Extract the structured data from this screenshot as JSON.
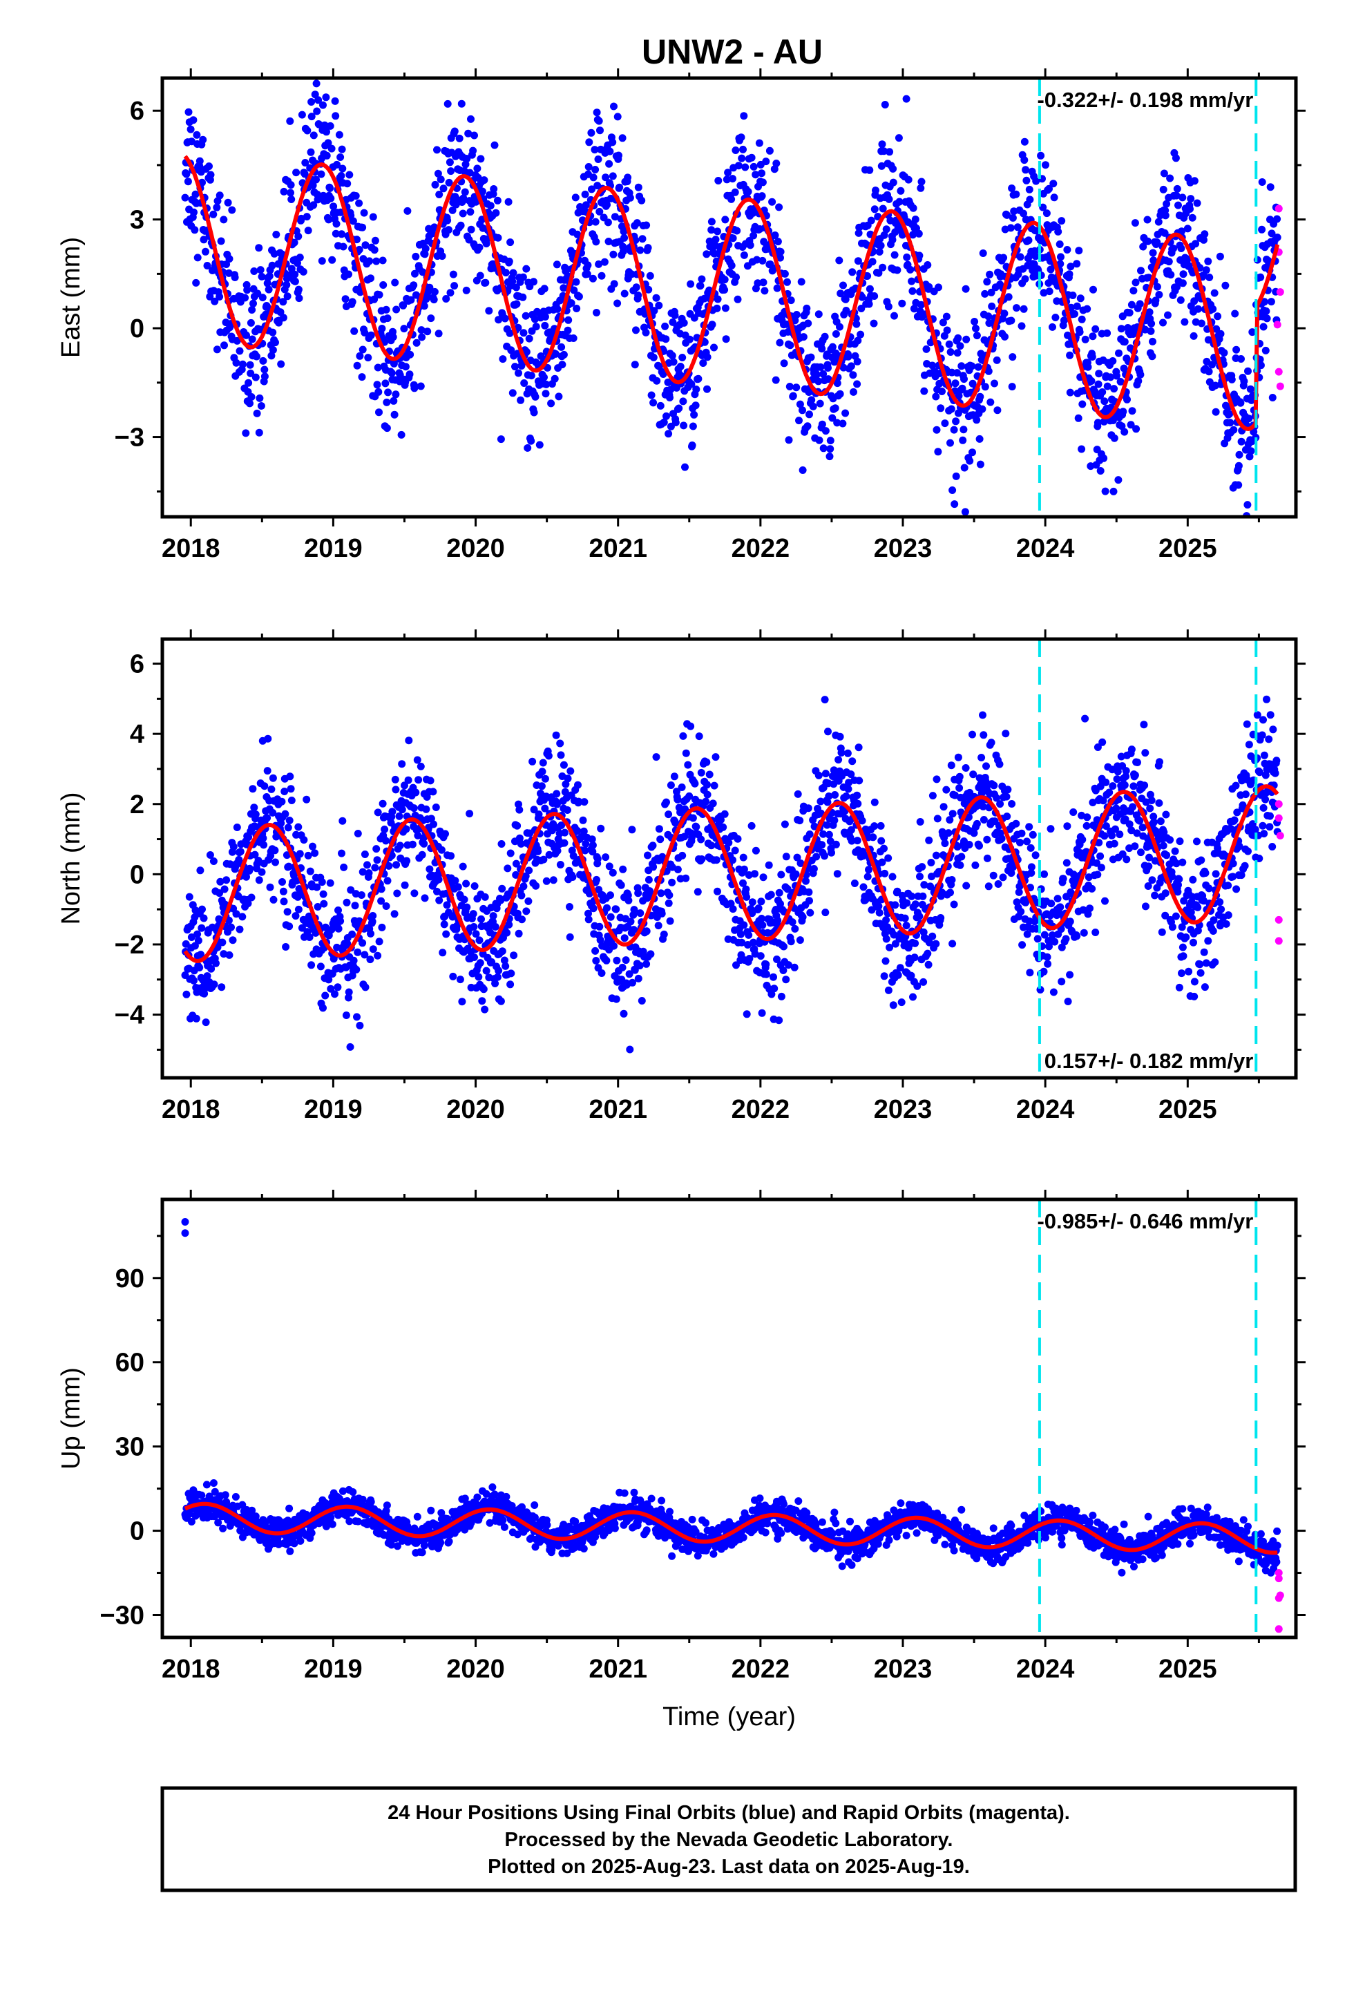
{
  "title": "UNW2 - AU",
  "colors": {
    "final_orbits": "#0000ff",
    "rapid_orbits": "#ff00ff",
    "model_fit": "#ff0000",
    "breaks": "#00e5ee",
    "frame": "#000000"
  },
  "footer": {
    "line1": "24 Hour Positions Using Final Orbits (blue) and Rapid Orbits (magenta).",
    "line2": "Processed by the Nevada Geodetic Laboratory.",
    "line3": "Plotted on 2025-Aug-23. Last data on 2025-Aug-19."
  },
  "chart_data": [
    {
      "type": "scatter",
      "component": "east",
      "ylabel": "East (mm)",
      "xlabel": "",
      "xlim": [
        2017.8,
        2025.76
      ],
      "ylim": [
        -5.2,
        6.9
      ],
      "xticks": [
        2018,
        2019,
        2020,
        2021,
        2022,
        2023,
        2024,
        2025
      ],
      "yticks": [
        -3,
        0,
        3,
        6
      ],
      "rate_text": "-0.322+/- 0.198 mm/yr",
      "rate_position": "top-right",
      "breaks": [
        2023.96,
        2025.48
      ],
      "model": {
        "offset": 1.02,
        "trend": -0.322,
        "t0": 2021.7,
        "annual_amp": 2.6,
        "annual_peak": 2018.92,
        "steps": [
          {
            "t": 2025.48,
            "dy": 3.2
          }
        ],
        "scatter": 1.1,
        "start": 2017.96,
        "end": 2025.63
      },
      "rapid_points": [
        {
          "x": 2025.64,
          "y": 3.3
        },
        {
          "x": 2025.64,
          "y": 2.1
        },
        {
          "x": 2025.65,
          "y": 1.0
        },
        {
          "x": 2025.64,
          "y": -1.2
        },
        {
          "x": 2025.65,
          "y": -1.6
        },
        {
          "x": 2025.63,
          "y": 0.1
        }
      ]
    },
    {
      "type": "scatter",
      "component": "north",
      "ylabel": "North (mm)",
      "xlabel": "",
      "xlim": [
        2017.8,
        2025.76
      ],
      "ylim": [
        -5.8,
        6.7
      ],
      "xticks": [
        2018,
        2019,
        2020,
        2021,
        2022,
        2023,
        2024,
        2025
      ],
      "yticks": [
        -4,
        -2,
        0,
        2,
        4,
        6
      ],
      "rate_text": "0.157+/- 0.182 mm/yr",
      "rate_position": "bottom-right",
      "breaks": [
        2023.96,
        2025.48
      ],
      "model": {
        "offset": 0.0,
        "trend": 0.157,
        "t0": 2021.7,
        "annual_amp": 1.9,
        "annual_peak": 2018.55,
        "steps": [],
        "scatter": 1.0,
        "start": 2017.96,
        "end": 2025.63
      },
      "rapid_points": [
        {
          "x": 2025.64,
          "y": 2.0
        },
        {
          "x": 2025.64,
          "y": 1.6
        },
        {
          "x": 2025.65,
          "y": 1.1
        },
        {
          "x": 2025.64,
          "y": -1.3
        },
        {
          "x": 2025.64,
          "y": -1.9
        }
      ]
    },
    {
      "type": "scatter",
      "component": "up",
      "ylabel": "Up (mm)",
      "xlabel": "Time (year)",
      "xlim": [
        2017.8,
        2025.76
      ],
      "ylim": [
        -38,
        118
      ],
      "xticks": [
        2018,
        2019,
        2020,
        2021,
        2022,
        2023,
        2024,
        2025
      ],
      "yticks": [
        -30,
        0,
        30,
        60,
        90
      ],
      "rate_text": "-0.985+/- 0.646 mm/yr",
      "rate_position": "top-right",
      "breaks": [
        2023.96,
        2025.48
      ],
      "model": {
        "offset": 1.0,
        "trend": -0.985,
        "t0": 2021.7,
        "annual_amp": 5.0,
        "annual_peak": 2019.1,
        "steps": [],
        "scatter": 2.8,
        "start": 2017.96,
        "end": 2025.63
      },
      "outliers": [
        {
          "x": 2017.96,
          "y": 110
        },
        {
          "x": 2017.96,
          "y": 106
        }
      ],
      "rapid_points": [
        {
          "x": 2025.64,
          "y": -15
        },
        {
          "x": 2025.64,
          "y": -17
        },
        {
          "x": 2025.65,
          "y": -23
        },
        {
          "x": 2025.64,
          "y": -24
        },
        {
          "x": 2025.64,
          "y": -35
        }
      ]
    }
  ]
}
